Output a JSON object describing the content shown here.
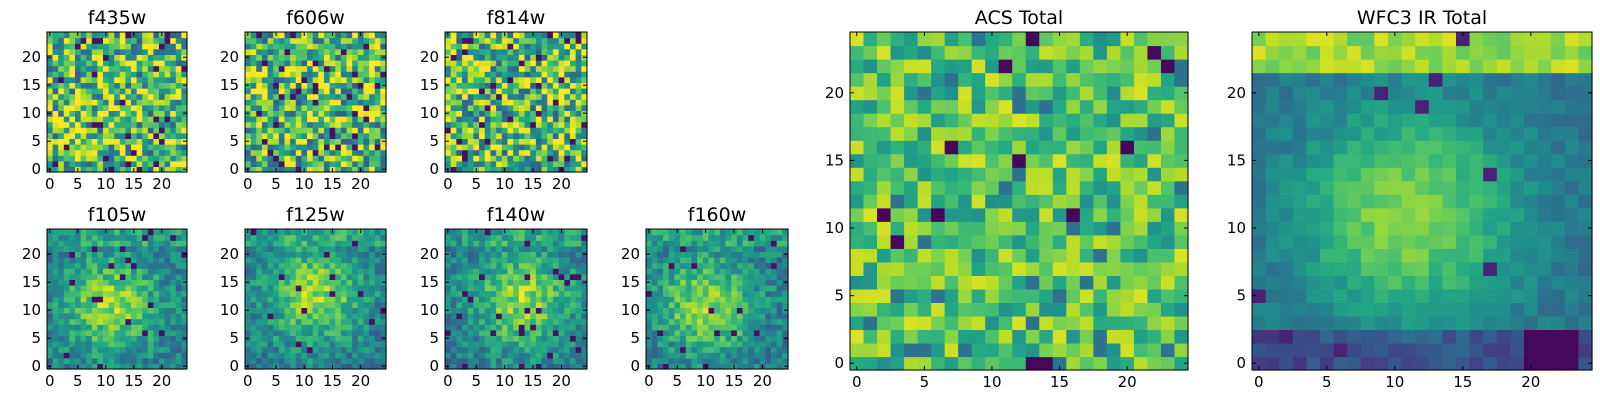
{
  "figure": {
    "description_free": true
  },
  "chart_data": [
    {
      "type": "heatmap",
      "title": "f435w",
      "grid_size": 25,
      "xlim": [
        0,
        24
      ],
      "ylim": [
        0,
        24
      ],
      "xticks": [
        "0",
        "5",
        "10",
        "15",
        "20"
      ],
      "yticks": [
        "0",
        "5",
        "10",
        "15",
        "20"
      ],
      "colormap": "viridis",
      "profile": "noise",
      "seed": 11
    },
    {
      "type": "heatmap",
      "title": "f606w",
      "grid_size": 25,
      "xlim": [
        0,
        24
      ],
      "ylim": [
        0,
        24
      ],
      "xticks": [
        "0",
        "5",
        "10",
        "15",
        "20"
      ],
      "yticks": [
        "0",
        "5",
        "10",
        "15",
        "20"
      ],
      "colormap": "viridis",
      "profile": "noise",
      "seed": 23
    },
    {
      "type": "heatmap",
      "title": "f814w",
      "grid_size": 25,
      "xlim": [
        0,
        24
      ],
      "ylim": [
        0,
        24
      ],
      "xticks": [
        "0",
        "5",
        "10",
        "15",
        "20"
      ],
      "yticks": [
        "0",
        "5",
        "10",
        "15",
        "20"
      ],
      "colormap": "viridis",
      "profile": "noise",
      "seed": 37
    },
    {
      "type": "heatmap",
      "title": "f105w",
      "grid_size": 25,
      "xlim": [
        0,
        24
      ],
      "ylim": [
        0,
        24
      ],
      "xticks": [
        "0",
        "5",
        "10",
        "15",
        "20"
      ],
      "yticks": [
        "0",
        "5",
        "10",
        "15",
        "20"
      ],
      "colormap": "viridis",
      "profile": "blob",
      "center": [
        11,
        11
      ],
      "seed": 41
    },
    {
      "type": "heatmap",
      "title": "f125w",
      "grid_size": 25,
      "xlim": [
        0,
        24
      ],
      "ylim": [
        0,
        24
      ],
      "xticks": [
        "0",
        "5",
        "10",
        "15",
        "20"
      ],
      "yticks": [
        "0",
        "5",
        "10",
        "15",
        "20"
      ],
      "colormap": "viridis",
      "profile": "blob",
      "center": [
        12,
        13
      ],
      "seed": 53
    },
    {
      "type": "heatmap",
      "title": "f140w",
      "grid_size": 25,
      "xlim": [
        0,
        24
      ],
      "ylim": [
        0,
        24
      ],
      "xticks": [
        "0",
        "5",
        "10",
        "15",
        "20"
      ],
      "yticks": [
        "0",
        "5",
        "10",
        "15",
        "20"
      ],
      "colormap": "viridis",
      "profile": "blob",
      "center": [
        13,
        12
      ],
      "seed": 67
    },
    {
      "type": "heatmap",
      "title": "f160w",
      "grid_size": 25,
      "xlim": [
        0,
        24
      ],
      "ylim": [
        0,
        24
      ],
      "xticks": [
        "0",
        "5",
        "10",
        "15",
        "20"
      ],
      "yticks": [
        "0",
        "5",
        "10",
        "15",
        "20"
      ],
      "colormap": "viridis",
      "profile": "blob",
      "center": [
        10,
        11
      ],
      "seed": 79
    },
    {
      "type": "heatmap",
      "title": "ACS Total",
      "grid_size": 25,
      "xlim": [
        0,
        24
      ],
      "ylim": [
        0,
        24
      ],
      "xticks": [
        "0",
        "5",
        "10",
        "15",
        "20"
      ],
      "yticks": [
        "0",
        "5",
        "10",
        "15",
        "20"
      ],
      "colormap": "viridis",
      "profile": "flat",
      "seed": 97
    },
    {
      "type": "heatmap",
      "title": "WFC3 IR Total",
      "grid_size": 25,
      "xlim": [
        0,
        24
      ],
      "ylim": [
        0,
        24
      ],
      "xticks": [
        "0",
        "5",
        "10",
        "15",
        "20"
      ],
      "yticks": [
        "0",
        "5",
        "10",
        "15",
        "20"
      ],
      "colormap": "viridis",
      "profile": "ir",
      "center": [
        11,
        11
      ],
      "seed": 113
    }
  ]
}
